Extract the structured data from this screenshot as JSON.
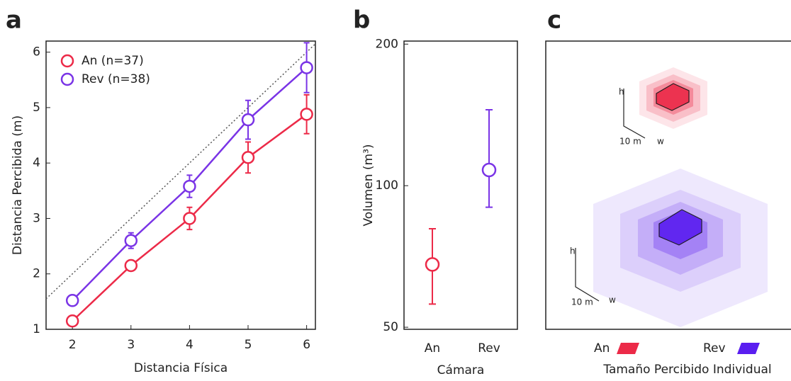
{
  "chart_data": [
    {
      "type": "line",
      "panel": "a",
      "xlabel": "Distancia Física",
      "ylabel": "Distancia Percibida (m)",
      "x": [
        2,
        3,
        4,
        5,
        6
      ],
      "xlim": [
        1.55,
        6.15
      ],
      "ylim": [
        1,
        6.2
      ],
      "xticks": [
        2,
        3,
        4,
        5,
        6
      ],
      "yticks": [
        1,
        2,
        3,
        4,
        5,
        6
      ],
      "diagonal": true,
      "legend": "upper-left",
      "series": [
        {
          "name": "An (n=37)",
          "color": "#ec2a48",
          "values": [
            1.15,
            2.15,
            3.0,
            4.1,
            4.88
          ],
          "errors": [
            0.05,
            0.06,
            0.2,
            0.28,
            0.35
          ]
        },
        {
          "name": "Rev (n=38)",
          "color": "#7a34e6",
          "values": [
            1.52,
            2.6,
            3.58,
            4.78,
            5.72
          ],
          "errors": [
            0.05,
            0.14,
            0.2,
            0.35,
            0.45
          ]
        }
      ]
    },
    {
      "type": "point",
      "panel": "b",
      "xlabel": "Cámara",
      "ylabel": "Volumen (m³)",
      "categories": [
        "An",
        "Rev"
      ],
      "values": [
        68,
        108
      ],
      "lower": [
        56,
        90
      ],
      "upper": [
        81,
        145
      ],
      "colors": [
        "#ec2a48",
        "#7a34e6"
      ],
      "log_scale": true,
      "ylim": [
        49.5,
        203
      ],
      "yticks": [
        50,
        100,
        200
      ]
    }
  ],
  "panel_c": {
    "panel": "c",
    "xlabel": "Tamaño Percibido Individual",
    "scale_bar": {
      "height": "h",
      "length": "10 m",
      "width": "w"
    },
    "legend": [
      {
        "name": "An",
        "color": "#ec2a48"
      },
      {
        "name": "Rev",
        "color": "#5a1ef0"
      }
    ]
  }
}
